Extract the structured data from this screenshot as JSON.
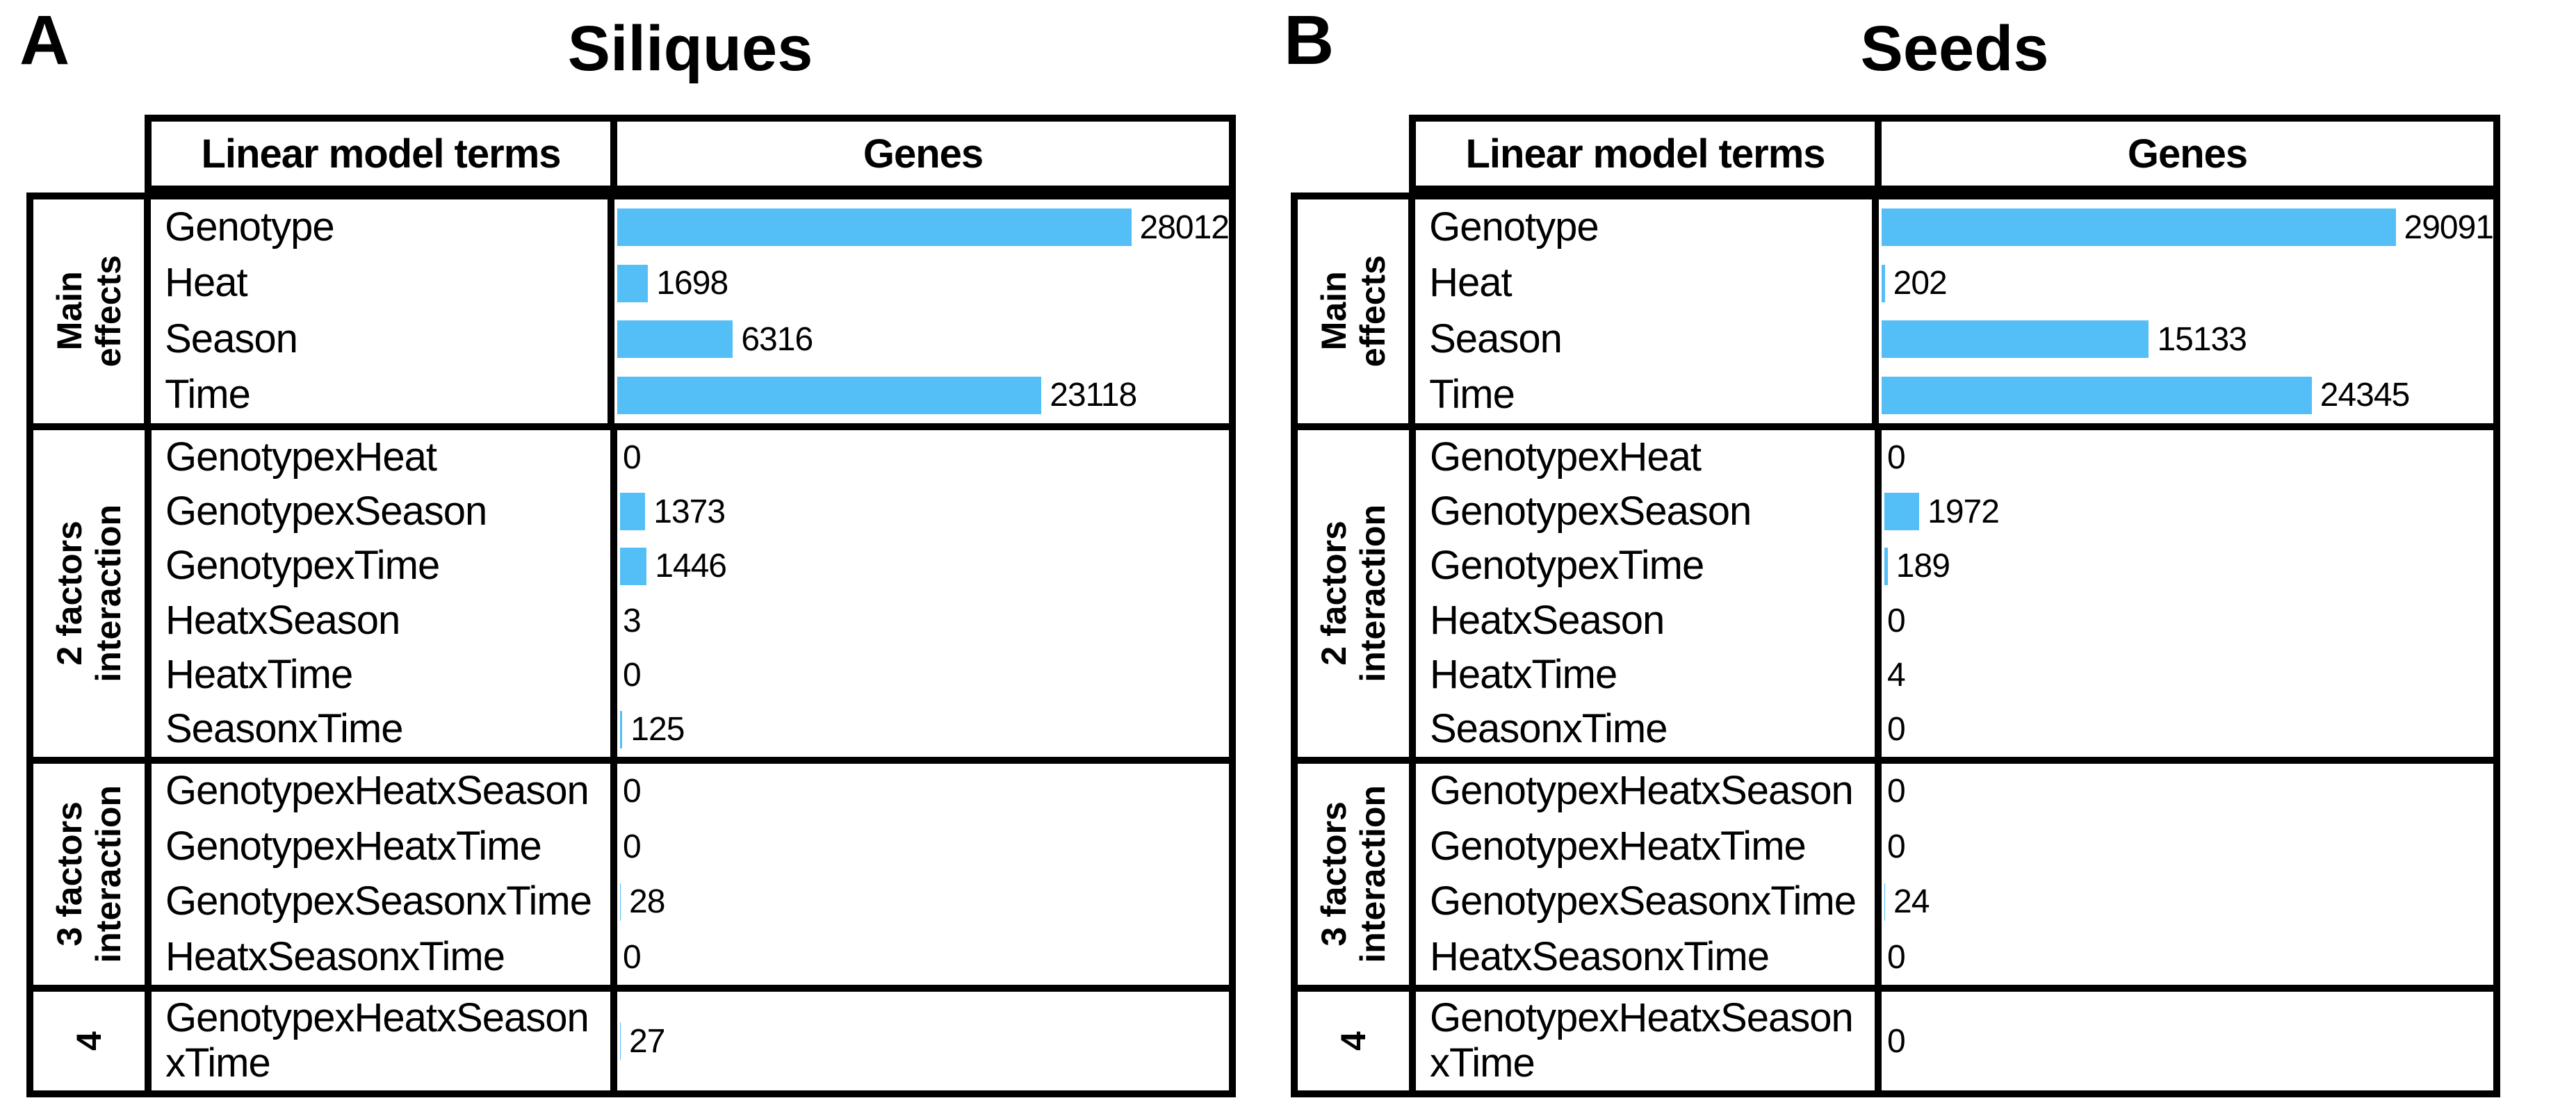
{
  "colors": {
    "bar": "#54BEF7",
    "border": "#000000",
    "text": "#000000",
    "background": "#FFFFFF"
  },
  "panels": [
    {
      "corner_label": "A",
      "title": "Siliques",
      "header": {
        "terms": "Linear model terms",
        "genes": "Genes"
      },
      "sections": [
        {
          "group_label": "Main\neffects",
          "rows": [
            {
              "term": "Genotype",
              "genes": 28012,
              "value_label": "28012"
            },
            {
              "term": "Heat",
              "genes": 1698,
              "value_label": "1698"
            },
            {
              "term": "Season",
              "genes": 6316,
              "value_label": "6316"
            },
            {
              "term": "Time",
              "genes": 23118,
              "value_label": "23118"
            }
          ]
        },
        {
          "group_label": "2 factors\ninteraction",
          "rows": [
            {
              "term": "GenotypexHeat",
              "genes": 0,
              "value_label": "0"
            },
            {
              "term": "GenotypexSeason",
              "genes": 1373,
              "value_label": "1373"
            },
            {
              "term": "GenotypexTime",
              "genes": 1446,
              "value_label": "1446"
            },
            {
              "term": "HeatxSeason",
              "genes": 3,
              "value_label": "3"
            },
            {
              "term": "HeatxTime",
              "genes": 0,
              "value_label": "0"
            },
            {
              "term": "SeasonxTime",
              "genes": 125,
              "value_label": "125"
            }
          ]
        },
        {
          "group_label": "3 factors\ninteraction",
          "rows": [
            {
              "term": "GenotypexHeatxSeason",
              "genes": 0,
              "value_label": "0"
            },
            {
              "term": "GenotypexHeatxTime",
              "genes": 0,
              "value_label": "0"
            },
            {
              "term": "GenotypexSeasonxTime",
              "genes": 28,
              "value_label": "28"
            },
            {
              "term": "HeatxSeasonxTime",
              "genes": 0,
              "value_label": "0"
            }
          ]
        },
        {
          "group_label": "4",
          "rows": [
            {
              "term": "GenotypexHeatxSeason\nxTime",
              "genes": 27,
              "value_label": "27"
            }
          ]
        }
      ]
    },
    {
      "corner_label": "B",
      "title": "Seeds",
      "header": {
        "terms": "Linear model terms",
        "genes": "Genes"
      },
      "sections": [
        {
          "group_label": "Main\neffects",
          "rows": [
            {
              "term": "Genotype",
              "genes": 29091,
              "value_label": "29091"
            },
            {
              "term": "Heat",
              "genes": 202,
              "value_label": "202"
            },
            {
              "term": "Season",
              "genes": 15133,
              "value_label": "15133"
            },
            {
              "term": "Time",
              "genes": 24345,
              "value_label": "24345"
            }
          ]
        },
        {
          "group_label": "2 factors\ninteraction",
          "rows": [
            {
              "term": "GenotypexHeat",
              "genes": 0,
              "value_label": "0"
            },
            {
              "term": "GenotypexSeason",
              "genes": 1972,
              "value_label": "1972"
            },
            {
              "term": "GenotypexTime",
              "genes": 189,
              "value_label": "189"
            },
            {
              "term": "HeatxSeason",
              "genes": 0,
              "value_label": "0"
            },
            {
              "term": "HeatxTime",
              "genes": 4,
              "value_label": "4"
            },
            {
              "term": "SeasonxTime",
              "genes": 0,
              "value_label": "0"
            }
          ]
        },
        {
          "group_label": "3 factors\ninteraction",
          "rows": [
            {
              "term": "GenotypexHeatxSeason",
              "genes": 0,
              "value_label": "0"
            },
            {
              "term": "GenotypexHeatxTime",
              "genes": 0,
              "value_label": "0"
            },
            {
              "term": "GenotypexSeasonxTime",
              "genes": 24,
              "value_label": "24"
            },
            {
              "term": "HeatxSeasonxTime",
              "genes": 0,
              "value_label": "0"
            }
          ]
        },
        {
          "group_label": "4",
          "rows": [
            {
              "term": "GenotypexHeatxSeason\nxTime",
              "genes": 0,
              "value_label": "0"
            }
          ]
        }
      ]
    }
  ],
  "chart_data": [
    {
      "type": "bar",
      "orientation": "horizontal",
      "title": "Siliques",
      "xlabel": "Genes",
      "ylabel": "Linear model terms",
      "legend": false,
      "grid": false,
      "xlim": [
        0,
        30000
      ],
      "categories": [
        "Genotype",
        "Heat",
        "Season",
        "Time",
        "GenotypexHeat",
        "GenotypexSeason",
        "GenotypexTime",
        "HeatxSeason",
        "HeatxTime",
        "SeasonxTime",
        "GenotypexHeatxSeason",
        "GenotypexHeatxTime",
        "GenotypexSeasonxTime",
        "HeatxSeasonxTime",
        "GenotypexHeatxSeasonxTime"
      ],
      "category_groups": [
        "Main effects",
        "Main effects",
        "Main effects",
        "Main effects",
        "2 factors interaction",
        "2 factors interaction",
        "2 factors interaction",
        "2 factors interaction",
        "2 factors interaction",
        "2 factors interaction",
        "3 factors interaction",
        "3 factors interaction",
        "3 factors interaction",
        "3 factors interaction",
        "4"
      ],
      "values": [
        28012,
        1698,
        6316,
        23118,
        0,
        1373,
        1446,
        3,
        0,
        125,
        0,
        0,
        28,
        0,
        27
      ],
      "bar_color": "#54BEF7"
    },
    {
      "type": "bar",
      "orientation": "horizontal",
      "title": "Seeds",
      "xlabel": "Genes",
      "ylabel": "Linear model terms",
      "legend": false,
      "grid": false,
      "xlim": [
        0,
        30000
      ],
      "categories": [
        "Genotype",
        "Heat",
        "Season",
        "Time",
        "GenotypexHeat",
        "GenotypexSeason",
        "GenotypexTime",
        "HeatxSeason",
        "HeatxTime",
        "SeasonxTime",
        "GenotypexHeatxSeason",
        "GenotypexHeatxTime",
        "GenotypexSeasonxTime",
        "HeatxSeasonxTime",
        "GenotypexHeatxSeasonxTime"
      ],
      "category_groups": [
        "Main effects",
        "Main effects",
        "Main effects",
        "Main effects",
        "2 factors interaction",
        "2 factors interaction",
        "2 factors interaction",
        "2 factors interaction",
        "2 factors interaction",
        "2 factors interaction",
        "3 factors interaction",
        "3 factors interaction",
        "3 factors interaction",
        "3 factors interaction",
        "4"
      ],
      "values": [
        29091,
        202,
        15133,
        24345,
        0,
        1972,
        189,
        0,
        4,
        0,
        0,
        0,
        24,
        0,
        0
      ],
      "bar_color": "#54BEF7"
    }
  ]
}
